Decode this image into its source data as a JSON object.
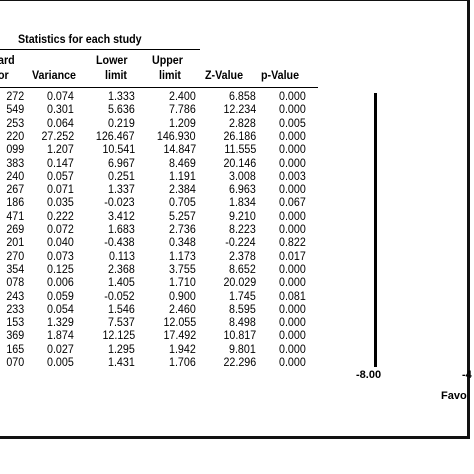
{
  "section_title": "Statistics for each study",
  "headers": {
    "std_error_top": "ard",
    "std_error_bottom": "or",
    "variance": "Variance",
    "lower_top": "Lower",
    "lower_bottom": "limit",
    "upper_top": "Upper",
    "upper_bottom": "limit",
    "z_value": "Z-Value",
    "p_value": "p-Value"
  },
  "rows": [
    {
      "se": "272",
      "variance": "0.074",
      "lower": "1.333",
      "upper": "2.400",
      "z": "6.858",
      "p": "0.000"
    },
    {
      "se": "549",
      "variance": "0.301",
      "lower": "5.636",
      "upper": "7.786",
      "z": "12.234",
      "p": "0.000"
    },
    {
      "se": "253",
      "variance": "0.064",
      "lower": "0.219",
      "upper": "1.209",
      "z": "2.828",
      "p": "0.005"
    },
    {
      "se": "220",
      "variance": "27.252",
      "lower": "126.467",
      "upper": "146.930",
      "z": "26.186",
      "p": "0.000"
    },
    {
      "se": "099",
      "variance": "1.207",
      "lower": "10.541",
      "upper": "14.847",
      "z": "11.555",
      "p": "0.000"
    },
    {
      "se": "383",
      "variance": "0.147",
      "lower": "6.967",
      "upper": "8.469",
      "z": "20.146",
      "p": "0.000"
    },
    {
      "se": "240",
      "variance": "0.057",
      "lower": "0.251",
      "upper": "1.191",
      "z": "3.008",
      "p": "0.003"
    },
    {
      "se": "267",
      "variance": "0.071",
      "lower": "1.337",
      "upper": "2.384",
      "z": "6.963",
      "p": "0.000"
    },
    {
      "se": "186",
      "variance": "0.035",
      "lower": "-0.023",
      "upper": "0.705",
      "z": "1.834",
      "p": "0.067"
    },
    {
      "se": "471",
      "variance": "0.222",
      "lower": "3.412",
      "upper": "5.257",
      "z": "9.210",
      "p": "0.000"
    },
    {
      "se": "269",
      "variance": "0.072",
      "lower": "1.683",
      "upper": "2.736",
      "z": "8.223",
      "p": "0.000"
    },
    {
      "se": "201",
      "variance": "0.040",
      "lower": "-0.438",
      "upper": "0.348",
      "z": "-0.224",
      "p": "0.822"
    },
    {
      "se": "270",
      "variance": "0.073",
      "lower": "0.113",
      "upper": "1.173",
      "z": "2.378",
      "p": "0.017"
    },
    {
      "se": "354",
      "variance": "0.125",
      "lower": "2.368",
      "upper": "3.755",
      "z": "8.652",
      "p": "0.000"
    },
    {
      "se": "078",
      "variance": "0.006",
      "lower": "1.405",
      "upper": "1.710",
      "z": "20.029",
      "p": "0.000"
    },
    {
      "se": "243",
      "variance": "0.059",
      "lower": "-0.052",
      "upper": "0.900",
      "z": "1.745",
      "p": "0.081"
    },
    {
      "se": "233",
      "variance": "0.054",
      "lower": "1.546",
      "upper": "2.460",
      "z": "8.595",
      "p": "0.000"
    },
    {
      "se": "153",
      "variance": "1.329",
      "lower": "7.537",
      "upper": "12.055",
      "z": "8.498",
      "p": "0.000"
    },
    {
      "se": "369",
      "variance": "1.874",
      "lower": "12.125",
      "upper": "17.492",
      "z": "10.817",
      "p": "0.000"
    },
    {
      "se": "165",
      "variance": "0.027",
      "lower": "1.295",
      "upper": "1.942",
      "z": "9.801",
      "p": "0.000"
    },
    {
      "se": "070",
      "variance": "0.005",
      "lower": "1.431",
      "upper": "1.706",
      "z": "22.296",
      "p": "0.000"
    }
  ],
  "forest_axis": {
    "tick_labels": [
      "-8.00",
      "-4"
    ],
    "favours_label": "Favo"
  }
}
